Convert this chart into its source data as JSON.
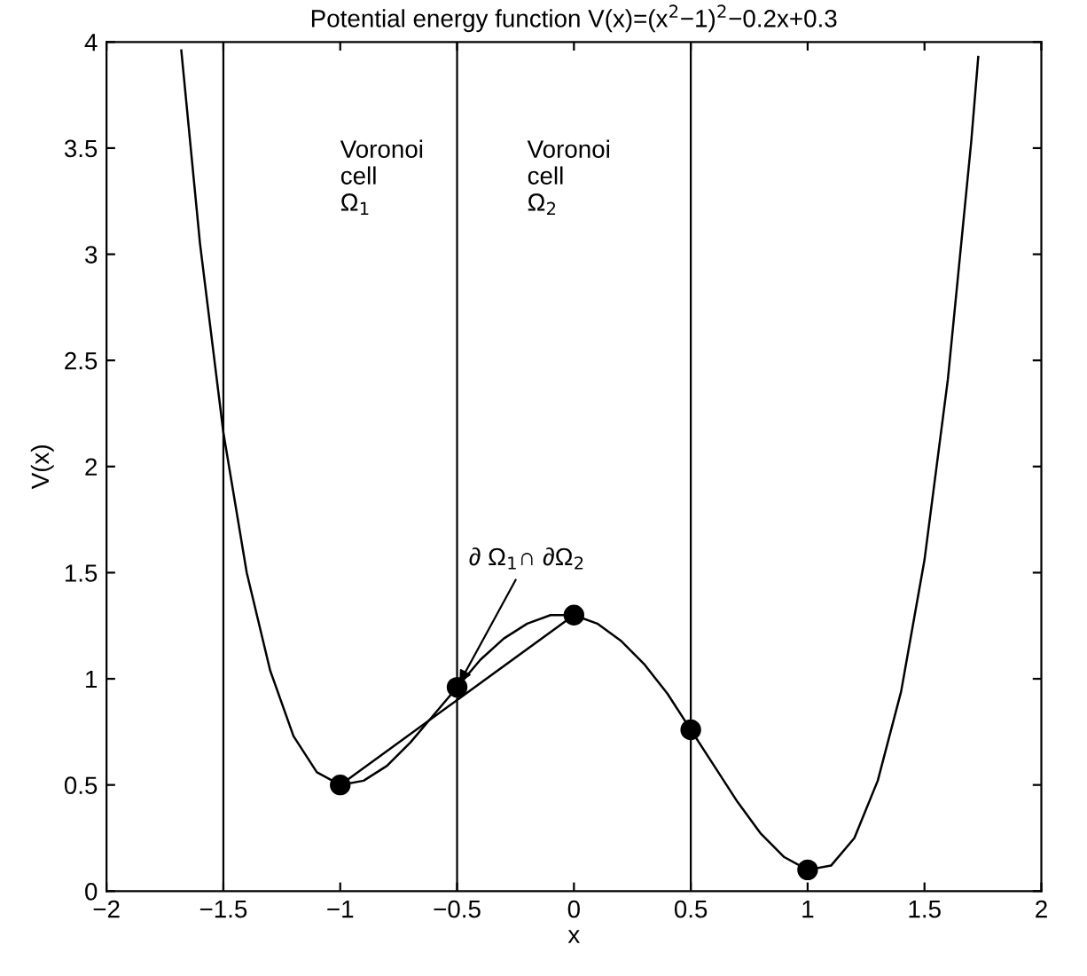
{
  "chart_data": {
    "type": "line",
    "title": "Potential energy function V(x)=(x$^{2}$−1)$^{2}$−0.2x+0.3",
    "xlabel": "x",
    "ylabel": "V(x)",
    "xlim": [
      -2,
      2
    ],
    "ylim": [
      0,
      4
    ],
    "xticks": [
      {
        "value": -2,
        "label": "−2"
      },
      {
        "value": -1.5,
        "label": "−1.5"
      },
      {
        "value": -1,
        "label": "−1"
      },
      {
        "value": -0.5,
        "label": "−0.5"
      },
      0,
      0.5,
      1,
      1.5,
      2
    ],
    "yticks": [
      0,
      0.5,
      1,
      1.5,
      2,
      2.5,
      3,
      3.5,
      4
    ],
    "grid": false,
    "legend": false,
    "series": [
      {
        "color": "#000000",
        "marker": "none",
        "x": [
          -1.68,
          -1.6,
          -1.5,
          -1.4,
          -1.3,
          -1.2,
          -1.1,
          -1.0,
          -0.9,
          -0.8,
          -0.7,
          -0.6,
          -0.5,
          -0.4,
          -0.3,
          -0.2,
          -0.1,
          0,
          0.1,
          0.2,
          0.3,
          0.4,
          0.5,
          0.6,
          0.7,
          0.8,
          0.9,
          1.0,
          1.1,
          1.2,
          1.3,
          1.4,
          1.5,
          1.6,
          1.7,
          1.73
        ],
        "values": [
          3.96,
          3.05,
          2.16,
          1.5,
          1.04,
          0.73,
          0.56,
          0.5,
          0.52,
          0.59,
          0.7,
          0.83,
          0.96,
          1.09,
          1.19,
          1.26,
          1.3,
          1.3,
          1.26,
          1.18,
          1.07,
          0.93,
          0.76,
          0.59,
          0.42,
          0.27,
          0.16,
          0.1,
          0.12,
          0.25,
          0.52,
          0.94,
          1.56,
          2.41,
          3.53,
          3.93
        ]
      },
      {
        "color": "#000000",
        "marker": "none",
        "x": [
          -1,
          0
        ],
        "values": [
          0.5,
          1.3
        ]
      },
      {
        "type": "scatter",
        "color": "#000000",
        "marker": "circle",
        "x": [
          -1,
          -0.5,
          0,
          0.5,
          1
        ],
        "values": [
          0.5,
          0.96,
          1.3,
          0.76,
          0.1
        ]
      }
    ],
    "ref_lines": [
      {
        "axis": "x",
        "value": -1.5,
        "color": "#000000"
      },
      {
        "axis": "x",
        "value": -0.5,
        "color": "#000000"
      },
      {
        "axis": "x",
        "value": 0.5,
        "color": "#000000"
      }
    ],
    "annotations": [
      "Voronoi\ncell\nΩ$_{1}$",
      "Voronoi\ncell\nΩ$_{2}$",
      {
        "text": "∂ Ω$_{1}$∩ ∂Ω$_{2}$",
        "x": -0.5,
        "y": 0.96
      }
    ]
  }
}
